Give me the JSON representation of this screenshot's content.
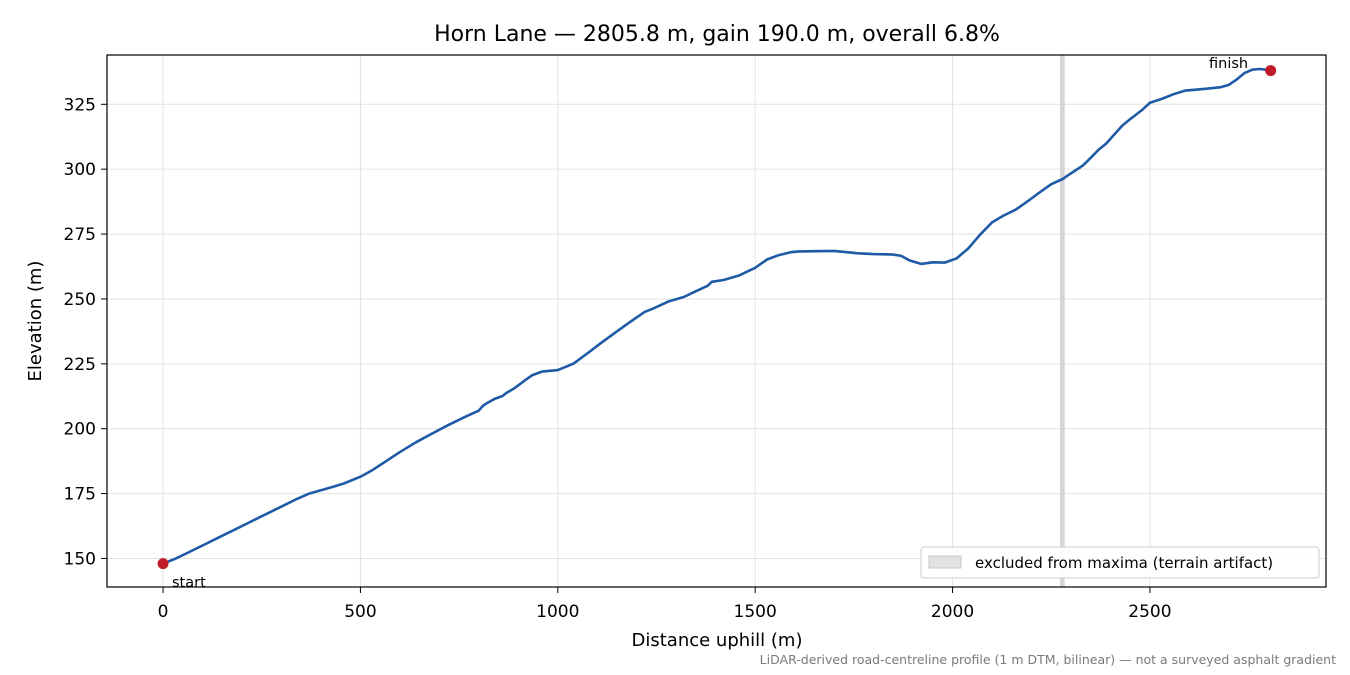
{
  "chart_data": {
    "type": "line",
    "title": "Horn Lane — 2805.8 m, gain 190.0 m, overall 6.8%",
    "xlabel": "Distance uphill (m)",
    "ylabel": "Elevation (m)",
    "xlim": [
      -142,
      2946
    ],
    "ylim": [
      139,
      344
    ],
    "x_ticks": [
      0,
      500,
      1000,
      1500,
      2000,
      2500
    ],
    "y_ticks": [
      150,
      175,
      200,
      225,
      250,
      275,
      300,
      325
    ],
    "x_tick_labels": [
      "0",
      "500",
      "1000",
      "1500",
      "2000",
      "2500"
    ],
    "y_tick_labels": [
      "150",
      "175",
      "200",
      "225",
      "250",
      "275",
      "300",
      "325"
    ],
    "grid": true,
    "line_color": "#1f5aa6",
    "marker_color": "#c01c28",
    "series": [
      {
        "x": [
          0,
          30,
          60,
          100,
          140,
          180,
          220,
          260,
          300,
          340,
          370,
          400,
          430,
          460,
          500,
          530,
          560,
          600,
          640,
          680,
          720,
          760,
          800,
          810,
          820,
          840,
          860,
          870,
          890,
          920,
          935,
          960,
          1000,
          1040,
          1080,
          1110,
          1140,
          1180,
          1220,
          1240,
          1280,
          1320,
          1350,
          1380,
          1390,
          1420,
          1460,
          1500,
          1530,
          1560,
          1590,
          1610,
          1650,
          1700,
          1720,
          1760,
          1800,
          1850,
          1870,
          1890,
          1920,
          1950,
          1980,
          2010,
          2040,
          2070,
          2100,
          2130,
          2160,
          2190,
          2220,
          2250,
          2280,
          2290,
          2310,
          2330,
          2350,
          2370,
          2390,
          2410,
          2430,
          2450,
          2480,
          2500,
          2530,
          2560,
          2590,
          2620,
          2650,
          2680,
          2700,
          2720,
          2740,
          2760,
          2780,
          2805.8
        ],
        "y": [
          148,
          149.8,
          152,
          155,
          158,
          161,
          164,
          167,
          170,
          173,
          175,
          176.3,
          177.6,
          179,
          181.5,
          184,
          187,
          191,
          194.7,
          198,
          201.2,
          204.2,
          207,
          208.8,
          209.8,
          211.5,
          212.6,
          213.8,
          215.6,
          219,
          220.6,
          222,
          222.6,
          225.1,
          229.6,
          233.1,
          236.4,
          240.8,
          245,
          246.2,
          249,
          250.8,
          253,
          255.1,
          256.6,
          257.3,
          259.1,
          262,
          265.2,
          266.9,
          268,
          268.3,
          268.4,
          268.5,
          268.2,
          267.6,
          267.3,
          267.1,
          266.6,
          264.9,
          263.5,
          264.1,
          264,
          265.6,
          269.5,
          274.8,
          279.5,
          282.2,
          284.4,
          287.6,
          291,
          294.2,
          296.3,
          297.4,
          299.4,
          301.4,
          304.4,
          307.5,
          310,
          313.4,
          316.8,
          319.3,
          322.8,
          325.6,
          327.1,
          328.9,
          330.3,
          330.7,
          331.1,
          331.6,
          332.5,
          334.6,
          337.1,
          338.4,
          338.6,
          338
        ]
      }
    ],
    "excluded_band": {
      "x": [
        2272,
        2284
      ],
      "color": "#cfcfcf"
    },
    "start_point": {
      "x": 0,
      "y": 148
    },
    "finish_point": {
      "x": 2805.8,
      "y": 338
    },
    "annotations": {
      "start": "start",
      "finish": "finish"
    },
    "legend": {
      "label": "excluded from maxima (terrain artifact)",
      "placement": "lower-right"
    },
    "footnote": "LiDAR-derived road-centreline profile (1 m DTM, bilinear) — not a surveyed asphalt gradient"
  }
}
